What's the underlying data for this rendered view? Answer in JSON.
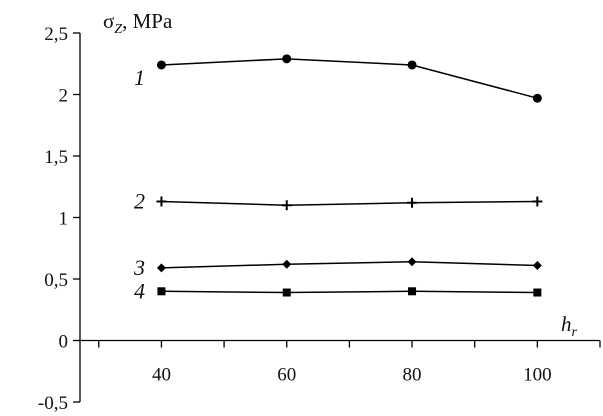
{
  "chart_data": {
    "type": "line",
    "title": "",
    "ylabel": {
      "sigma": "σ",
      "sub": "Z",
      "unit": ", MPa"
    },
    "xlabel": {
      "main": "h",
      "sub": "r"
    },
    "x": [
      40,
      60,
      80,
      100
    ],
    "xlim": [
      27,
      110
    ],
    "ylim": [
      -0.5,
      2.5
    ],
    "xticks": [
      40,
      60,
      80,
      100
    ],
    "xtick_labels": [
      "40",
      "60",
      "80",
      "100"
    ],
    "yticks": [
      -0.5,
      0,
      0.5,
      1,
      1.5,
      2,
      2.5
    ],
    "ytick_labels": [
      "-0,5",
      "0",
      "0,5",
      "1",
      "1,5",
      "2",
      "2,5"
    ],
    "grid": false,
    "series": [
      {
        "name": "1",
        "marker": "circle",
        "values": [
          2.24,
          2.29,
          2.24,
          1.97
        ]
      },
      {
        "name": "2",
        "marker": "plus",
        "values": [
          1.13,
          1.1,
          1.12,
          1.13
        ]
      },
      {
        "name": "3",
        "marker": "diamond",
        "values": [
          0.59,
          0.62,
          0.64,
          0.61
        ]
      },
      {
        "name": "4",
        "marker": "square",
        "values": [
          0.4,
          0.39,
          0.4,
          0.39
        ]
      }
    ],
    "colors": {
      "line": "#000000"
    }
  }
}
